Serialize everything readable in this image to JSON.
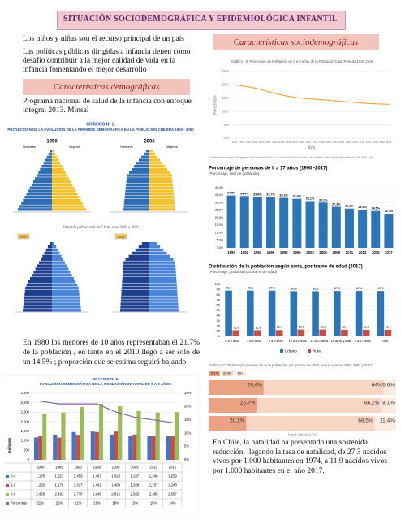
{
  "title": "SITUACIÓN SOCIODEMOGRÁFICA Y EPIDEMIOLÓGICA INFANTIL",
  "left": {
    "lead": "Los niños y niñas son el recurso principal de un país",
    "paragraph": "Las políticas públicas dirigidas a infancia tienen como desafío contribuir a la mejor calidad de vida en la infancia fomentando el mejor desarrollo",
    "section_title": "Características demográficas",
    "source": "Programa nacional de salud de la infancia con enfoque integral 2013. Minsal",
    "paragraph_2": "En 1980 los menores de 10 años representaban el 21,7% de la población , en tanto en el 2010 llego a ser solo de un 14,5% ; proporción que se estima seguirá bajando"
  },
  "pyramids_1": {
    "title_line_1": "GRÁFICO N° 1.",
    "title_line_2": "PROYECCIÓN DE LA EVOLUCIÓN DE LA PIRÁMIDE DEMOGRÁFICA EN LA POBLACIÓN CHILENA 1950 - 2050",
    "men": "Hombres",
    "women": "Mujeres",
    "years": [
      "1950",
      "2005"
    ]
  },
  "pyramids_2": {
    "title": "Pirámide poblacional de Chile, años 2000 y 2025",
    "years": [
      "2000",
      "2025"
    ]
  },
  "right": {
    "section_title": "Características sociodemográficas",
    "paragraph": "En Chile, la natalidad ha presentado una sostenida reducción, llegando la tasa de natalidad, de 27,3 nacidos vivos por 1.000 habitantes en 1974, a 11,9 nacidos vivos por 1.000 habitantes en el año 2017."
  },
  "charts": [
    {
      "type": "line",
      "title": "Gráfico I-3. Porcentaje de Población de 0 a 9 años de la Población total. Periodo 1992-2038",
      "y_label": "Porcentaje",
      "x_label": "Año",
      "source": "Fuente: elaborado por Programa Nacional de Salud de la Infancia en base a datos del Instituto Nacional de Estadísticas INE 2019-1(2)",
      "x": [
        1992,
        1994,
        1996,
        1998,
        2000,
        2002,
        2004,
        2006,
        2008,
        2010,
        2012,
        2014,
        2016,
        2018,
        2020,
        2022,
        2024,
        2026,
        2028,
        2030,
        2032,
        2034,
        2036,
        2038
      ],
      "series": [
        {
          "color": "#f0a030",
          "values": [
            20,
            19.7,
            19.3,
            18.8,
            18.2,
            17.5,
            16.8,
            16.2,
            15.7,
            15.3,
            15,
            14.8,
            14.6,
            14.4,
            14.2,
            14,
            13.8,
            13.6,
            13.4,
            13.2,
            13,
            12.9,
            12.8,
            12.7
          ]
        }
      ],
      "xlim": [
        1991,
        2039
      ],
      "xticks": [
        1992,
        1994,
        1996,
        1998,
        2000,
        2002,
        2004,
        2006,
        2008,
        2010,
        2012,
        2014,
        2016,
        2018,
        2020,
        2022,
        2024,
        2026,
        2028,
        2030,
        2032,
        2034,
        2036,
        2038
      ],
      "ylim": [
        0,
        25
      ],
      "yticks": [
        {
          "value": 0,
          "label": "0%"
        },
        {
          "value": 5,
          "label": "5%"
        },
        {
          "value": 10,
          "label": "10%"
        },
        {
          "value": 15,
          "label": "15%"
        },
        {
          "value": 20,
          "label": "20%"
        },
        {
          "value": 25,
          "label": "25%"
        }
      ],
      "grid": true
    },
    {
      "type": "bar",
      "title": "Porcentaje de personas de 0 a 17 años (1990 -2017)",
      "subtitle": "(Porcentaje, total de población)",
      "categories": [
        "1990",
        "1992",
        "1994",
        "1996",
        "1998",
        "2000",
        "2003",
        "2006",
        "2009",
        "2011",
        "2013",
        "2015",
        "2017"
      ],
      "values": [
        34.8,
        34.4,
        33.8,
        33.7,
        33.2,
        32.6,
        31.1,
        30.1,
        27.3,
        26.1,
        25.3,
        24.5,
        22.7
      ],
      "value_labels": [
        "34,8%",
        "34,4%",
        "33,8%",
        "33,7%",
        "33,2%",
        "32,6%",
        "31,1%",
        "30,1%",
        "27,3%",
        "26,1%",
        "25,3%",
        "24,5%",
        "22,7%"
      ],
      "color": "#2e75b6",
      "ylim": [
        0,
        40
      ],
      "yticks": [
        {
          "value": 0,
          "label": "0,0%"
        },
        {
          "value": 5,
          "label": "5,0%"
        },
        {
          "value": 10,
          "label": "10,0%"
        },
        {
          "value": 15,
          "label": "15,0%"
        },
        {
          "value": 20,
          "label": "20,0%"
        },
        {
          "value": 25,
          "label": "25,0%"
        },
        {
          "value": 30,
          "label": "30,0%"
        },
        {
          "value": 35,
          "label": "35,0%"
        },
        {
          "value": 40,
          "label": "40,0%"
        }
      ],
      "grid": true
    },
    {
      "type": "grouped_bar",
      "title": "Distribución de la población según zona, por tramo de edad (2017)",
      "subtitle": "(Porcentaje, población por tramo de edad)",
      "categories": [
        "0 a 3 años",
        "4 a 5 años",
        "6 a 9 años",
        "10 a 13 años",
        "14 a 17 años",
        "18 años y más",
        "0 a 17 años",
        "Total"
      ],
      "series": [
        {
          "name": "Urbano",
          "color": "#2e75b6",
          "values": [
            88.1,
            88.1,
            87.9,
            86.9,
            86.8,
            87.3,
            87.4,
            87.3
          ],
          "value_labels": [
            "88,1",
            "88,1",
            "87,9",
            "86,9",
            "86,8",
            "87,3",
            "87,4",
            "87,3"
          ]
        },
        {
          "name": "Rural",
          "color": "#c0504d",
          "values": [
            11.9,
            11.9,
            12.1,
            13.1,
            13.2,
            12.7,
            12.6,
            12.7
          ],
          "value_labels": [
            "11,9",
            "11,9",
            "12,1",
            "13,1",
            "13,2",
            "12,7",
            "12,6",
            "12,7"
          ]
        }
      ],
      "ylim": [
        0,
        100
      ],
      "yticks": [
        0,
        10,
        20,
        30,
        40,
        50,
        60,
        70,
        80,
        90,
        100
      ],
      "grid": true
    },
    {
      "type": "stacked_barh",
      "title": "Gráfico I-2. Distribución porcentual de la población, por grupos de edad, según censos 1992, 2002 y 2017.",
      "source": "Fuente: INE, 2018 (10)",
      "series": [
        {
          "name": "0-14",
          "color": "#eba283",
          "values": [
            29.4,
            25.7,
            20.1
          ],
          "value_labels": [
            "29,4%",
            "25,7%",
            "20,1%"
          ]
        },
        {
          "name": "15-64",
          "color": "#f7d6c3",
          "values": [
            64,
            66.2,
            68.5
          ],
          "value_labels": [
            "64%",
            "66,2%",
            "68,5%"
          ]
        },
        {
          "name": "65+",
          "color": "#fcebe0",
          "values": [
            6.6,
            8.1,
            11.4
          ],
          "value_labels": [
            "6,6%",
            "8,1%",
            "11,4%"
          ]
        }
      ],
      "xlim": [
        0,
        100
      ]
    },
    {
      "type": "combo",
      "title_line_1": "GRÁFICO N° 2.",
      "title_line_2": "EVOLUCIÓN DEMOGRÁFICA DE LA POBLACIÓN INFANTIL DE 0 A 9 AÑOS",
      "y_label": "millones",
      "categories": [
        "1980",
        "1985",
        "1990",
        "1995",
        "2000",
        "2005",
        "2010",
        "2015"
      ],
      "series": [
        {
          "name": "0-4",
          "color": "#4472c4",
          "values": [
            1178,
            1323,
            1459,
            1487,
            1328,
            1237,
            1248,
            1259
          ],
          "value_labels": [
            "1,178",
            "1,323",
            "1,459",
            "1,487",
            "1,328",
            "1,237",
            "1,248",
            "1,259"
          ]
        },
        {
          "name": "5-9",
          "color": "#c0504d",
          "values": [
            1250,
            1170,
            1317,
            1461,
            1488,
            1328,
            1237,
            1248
          ],
          "value_labels": [
            "1,250",
            "1,170",
            "1,317",
            "1,461",
            "1,488",
            "1,328",
            "1,237",
            "1,248"
          ]
        },
        {
          "name": "0-9",
          "color": "#9bbb59",
          "values": [
            2428,
            2493,
            2776,
            2948,
            2816,
            2565,
            2485,
            2507
          ],
          "value_labels": [
            "2,428",
            "2,493",
            "2,776",
            "2,948",
            "2,816",
            "2,565",
            "2,485",
            "2,507"
          ]
        },
        {
          "name": "Porcentaje",
          "color": "#8064a2",
          "axis": "y2",
          "values": [
            22,
            21,
            21,
            21,
            18,
            16,
            15,
            14
          ],
          "value_labels": [
            "22%",
            "21%",
            "21%",
            "21%",
            "18%",
            "16%",
            "15%",
            "14%"
          ]
        }
      ],
      "ylim": [
        0,
        3500
      ],
      "yticks": [
        0,
        500,
        {
          "value": 1000,
          "label": "1,000"
        },
        {
          "value": 1500,
          "label": "1,500"
        },
        {
          "value": 2000,
          "label": "2,000"
        },
        {
          "value": 2500,
          "label": "2,500"
        },
        {
          "value": 3000,
          "label": "3,000"
        },
        {
          "value": 3500,
          "label": "3,500"
        }
      ],
      "y2lim": [
        0,
        25
      ],
      "y2ticks": [
        {
          "value": 0,
          "label": "0%"
        },
        {
          "value": 5,
          "label": "5%"
        },
        {
          "value": 10,
          "label": "10%"
        },
        {
          "value": 15,
          "label": "15%"
        },
        {
          "value": 20,
          "label": "20%"
        },
        {
          "value": 25,
          "label": "25%"
        }
      ],
      "grid": true
    }
  ]
}
